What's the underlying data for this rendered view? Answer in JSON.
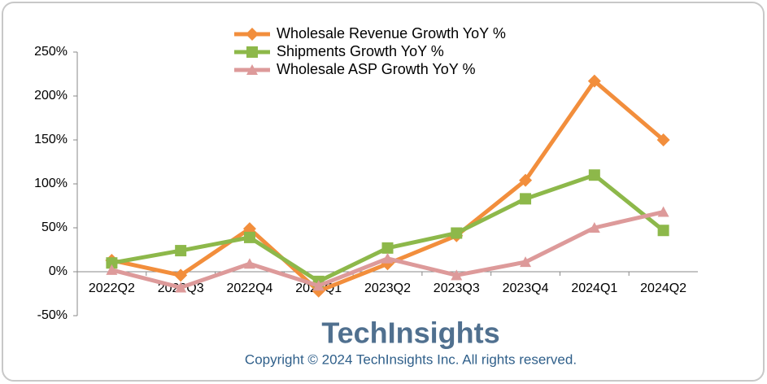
{
  "chart_data": {
    "type": "line",
    "categories": [
      "2022Q2",
      "2022Q3",
      "2022Q4",
      "2023Q1",
      "2023Q2",
      "2023Q3",
      "2023Q4",
      "2024Q1",
      "2024Q2"
    ],
    "series": [
      {
        "name": "Wholesale Revenue Growth YoY %",
        "color": "#f28e3c",
        "marker": "diamond",
        "values": [
          13,
          -4,
          49,
          -22,
          9,
          41,
          104,
          217,
          150
        ]
      },
      {
        "name": "Shipments Growth YoY %",
        "color": "#8db84a",
        "marker": "square",
        "values": [
          10,
          24,
          39,
          -11,
          27,
          44,
          83,
          110,
          47
        ]
      },
      {
        "name": "Wholesale ASP Growth YoY %",
        "color": "#dd9a9a",
        "marker": "triangle",
        "values": [
          2,
          -18,
          9,
          -16,
          15,
          -4,
          11,
          50,
          68
        ]
      }
    ],
    "ylim": [
      -50,
      250
    ],
    "yticks": [
      {
        "value": -50,
        "label": "-50%"
      },
      {
        "value": 0,
        "label": "0%"
      },
      {
        "value": 50,
        "label": "50%"
      },
      {
        "value": 100,
        "label": "100%"
      },
      {
        "value": 150,
        "label": "150%"
      },
      {
        "value": 200,
        "label": "200%"
      },
      {
        "value": 250,
        "label": "250%"
      }
    ],
    "grid": false,
    "legend": "top",
    "annotations": [
      "TechInsights",
      "Copyright © 2024 TechInsights Inc.  All rights reserved."
    ]
  }
}
